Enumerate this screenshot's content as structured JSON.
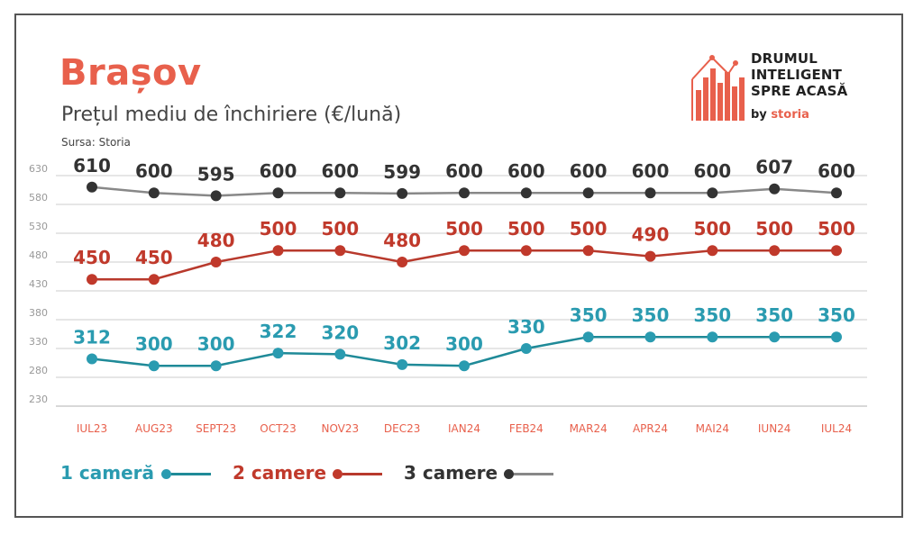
{
  "header": {
    "title": "Brașov",
    "subtitle": "Prețul mediu de închiriere (€/lună)",
    "source": "Sursa: Storia"
  },
  "logo": {
    "line1": "DRUMUL",
    "line2": "INTELIGENT",
    "line3": "SPRE ACASĂ",
    "by": "by",
    "brand": "storia"
  },
  "chart_data": {
    "type": "line",
    "categories": [
      "IUL23",
      "AUG23",
      "SEPT23",
      "OCT23",
      "NOV23",
      "DEC23",
      "IAN24",
      "FEB24",
      "MAR24",
      "APR24",
      "MAI24",
      "IUN24",
      "IUL24"
    ],
    "yticks": [
      230,
      280,
      330,
      380,
      430,
      480,
      530,
      580,
      630
    ],
    "ylim": [
      230,
      630
    ],
    "grid": true,
    "legend_position": "bottom",
    "series": [
      {
        "name": "1 cameră",
        "color": "#2a9bb0",
        "values": [
          312,
          300,
          300,
          322,
          320,
          302,
          300,
          330,
          350,
          350,
          350,
          350,
          350
        ]
      },
      {
        "name": "2 camere",
        "color": "#c0392b",
        "values": [
          450,
          450,
          480,
          500,
          500,
          480,
          500,
          500,
          500,
          490,
          500,
          500,
          500
        ]
      },
      {
        "name": "3 camere",
        "color": "#333333",
        "values": [
          610,
          600,
          595,
          600,
          600,
          599,
          600,
          600,
          600,
          600,
          600,
          607,
          600
        ]
      }
    ]
  },
  "colors": {
    "accent": "#e8604c",
    "tick_label": "#e8604c",
    "grid": "#cccccc",
    "line_grey": "#888888",
    "line_teal": "#1f8a98",
    "line_red": "#b8392c"
  }
}
